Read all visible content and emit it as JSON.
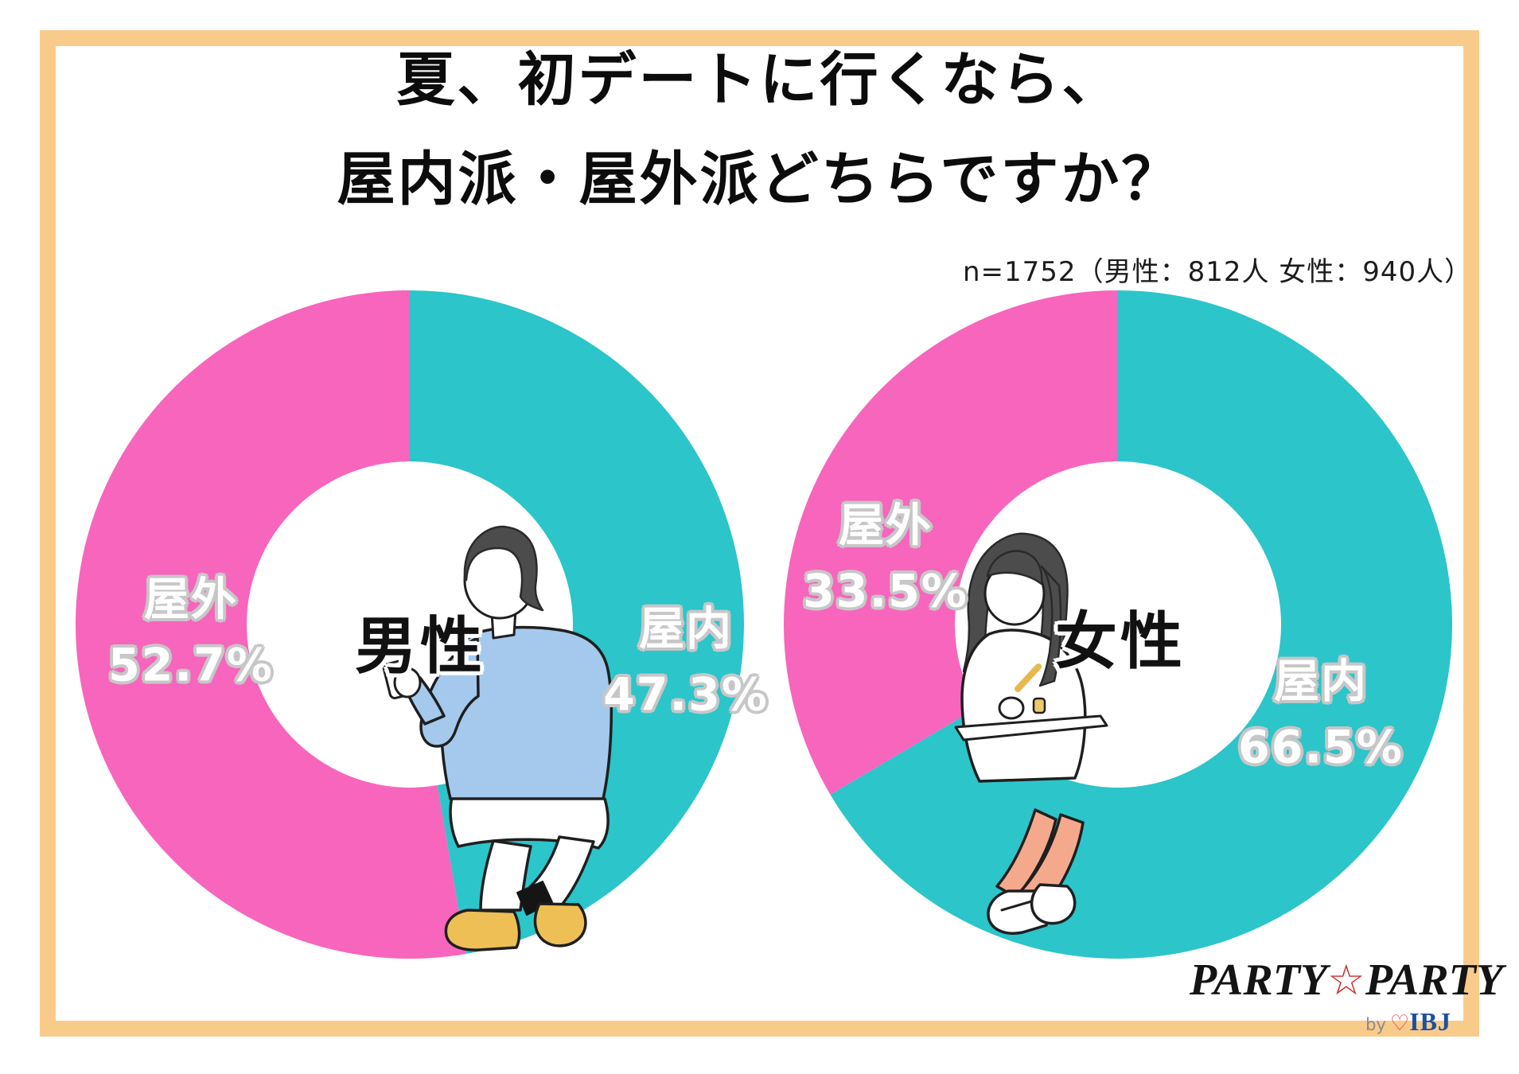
{
  "frame_color": "#f9cb8b",
  "title": {
    "line1": "夏、初デートに行くなら、",
    "line2": "屋内派・屋外派どちらですか？"
  },
  "sample_note": "n=1752（男性：812人 女性：940人）",
  "chart_data": [
    {
      "type": "pie",
      "donut": true,
      "title": "男性",
      "n": 812,
      "start_angle_deg": 0,
      "direction": "clockwise",
      "slices": [
        {
          "label": "屋内",
          "value": 47.3,
          "display": "47.3%",
          "color": "#2bc5ca"
        },
        {
          "label": "屋外",
          "value": 52.7,
          "display": "52.7%",
          "color": "#f765bd"
        }
      ]
    },
    {
      "type": "pie",
      "donut": true,
      "title": "女性",
      "n": 940,
      "start_angle_deg": 0,
      "direction": "clockwise",
      "slices": [
        {
          "label": "屋内",
          "value": 66.5,
          "display": "66.5%",
          "color": "#2bc5ca"
        },
        {
          "label": "屋外",
          "value": 33.5,
          "display": "33.5%",
          "color": "#f765bd"
        }
      ]
    }
  ],
  "total_n": "n=1752",
  "logo": {
    "party1": "PARTY",
    "star": "☆",
    "party2": "PARTY",
    "by": "by",
    "heart": "♡",
    "ibj": "IBJ",
    "star_color": "#cf2b2b",
    "ibj_color": "#1c4fa0"
  }
}
